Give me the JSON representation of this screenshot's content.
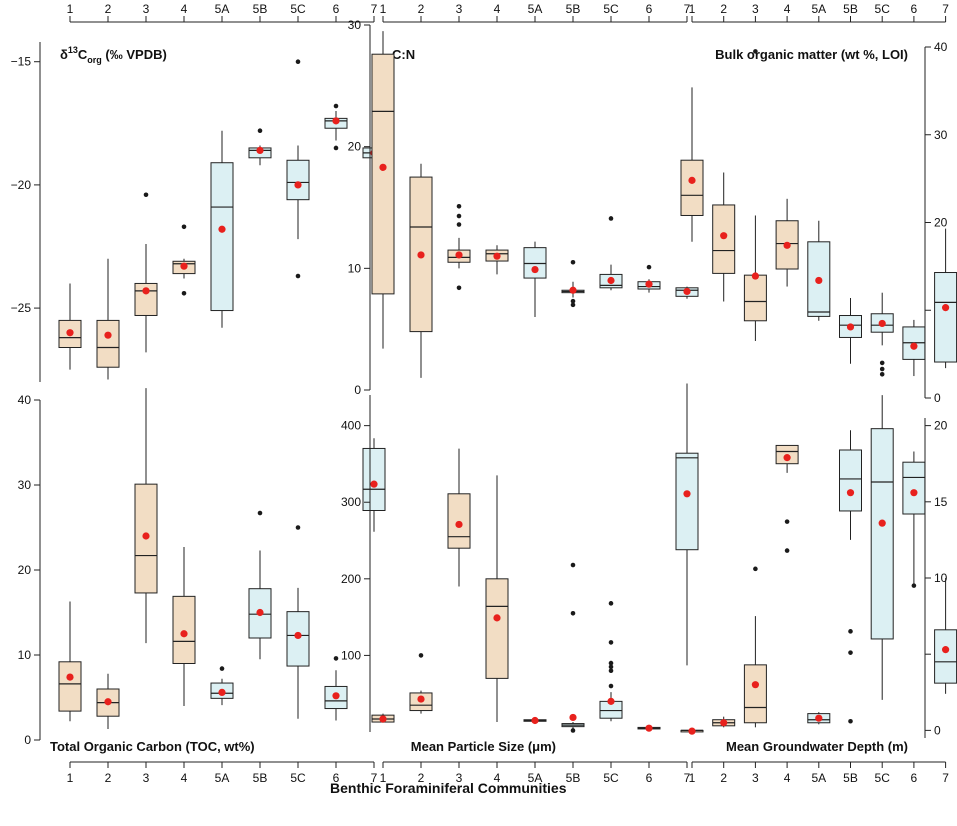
{
  "figure": {
    "xlabel": "Benthic Foraminiferal Communities",
    "groups": [
      "1",
      "2",
      "3",
      "4",
      "5A",
      "5B",
      "5C",
      "6",
      "7"
    ],
    "colors": {
      "box_a": "#f2ddc4",
      "box_b": "#dcf0f3",
      "mean_dot": "#e8211d",
      "outlier": "#1a1a1a",
      "axis": "#222222"
    }
  },
  "chart_data": [
    {
      "type": "box",
      "id": "d13c",
      "title": "δ13Corg (‰ VPDB)",
      "title_parts": {
        "main": "δ",
        "sup": "13",
        "c": "C",
        "sub": "org",
        "rest": " (‰ VPDB)"
      },
      "ylim": [
        -28,
        -14.2
      ],
      "yticks": [
        -15,
        -20,
        -25
      ],
      "ytick_labels": [
        "−15",
        "−20",
        "−25"
      ],
      "axis_side": "left",
      "group_axis": "top",
      "series": [
        {
          "group": "1",
          "q1": -26.6,
          "median": -26.2,
          "q3": -25.5,
          "whislo": -27.5,
          "whishi": -24.0,
          "mean": -26.0,
          "outliers": []
        },
        {
          "group": "2",
          "q1": -27.4,
          "median": -26.6,
          "q3": -25.5,
          "whislo": -27.9,
          "whishi": -23.0,
          "mean": -26.1,
          "outliers": []
        },
        {
          "group": "3",
          "q1": -25.3,
          "median": -24.3,
          "q3": -24.0,
          "whislo": -26.8,
          "whishi": -22.4,
          "mean": -24.3,
          "outliers": [
            -20.4
          ]
        },
        {
          "group": "4",
          "q1": -23.6,
          "median": -23.2,
          "q3": -23.1,
          "whislo": -23.8,
          "whishi": -23.0,
          "mean": -23.3,
          "outliers": [
            -21.7,
            -24.4
          ]
        },
        {
          "group": "5A",
          "q1": -25.1,
          "median": -20.9,
          "q3": -19.1,
          "whislo": -25.8,
          "whishi": -17.8,
          "mean": -21.8,
          "outliers": []
        },
        {
          "group": "5B",
          "q1": -18.9,
          "median": -18.6,
          "q3": -18.5,
          "whislo": -19.2,
          "whishi": -18.4,
          "mean": -18.6,
          "outliers": [
            -17.8
          ]
        },
        {
          "group": "5C",
          "q1": -20.6,
          "median": -19.9,
          "q3": -19.0,
          "whislo": -22.2,
          "whishi": -18.4,
          "mean": -20.0,
          "outliers": [
            -15.0,
            -23.7
          ]
        },
        {
          "group": "6",
          "q1": -17.7,
          "median": -17.4,
          "q3": -17.3,
          "whislo": -18.2,
          "whishi": -17.0,
          "mean": -17.4,
          "outliers": [
            -16.8,
            -18.5
          ]
        },
        {
          "group": "7",
          "q1": -18.9,
          "median": -18.7,
          "q3": -18.5,
          "whislo": -19.1,
          "whishi": -18.4,
          "mean": -18.7,
          "outliers": [
            -17.9,
            -18.0,
            -19.6
          ]
        }
      ]
    },
    {
      "type": "box",
      "id": "cn",
      "title": "C:N",
      "ylim": [
        0,
        30
      ],
      "yticks": [
        0,
        10,
        20,
        30
      ],
      "ytick_labels": [
        "0",
        "10",
        "20",
        "30"
      ],
      "axis_side": "left",
      "group_axis": "top",
      "series": [
        {
          "group": "1",
          "q1": 7.9,
          "median": 22.9,
          "q3": 27.6,
          "whislo": 3.4,
          "whishi": 29.5,
          "mean": 18.3,
          "outliers": []
        },
        {
          "group": "2",
          "q1": 4.8,
          "median": 13.4,
          "q3": 17.5,
          "whislo": 1.0,
          "whishi": 18.6,
          "mean": 11.1,
          "outliers": []
        },
        {
          "group": "3",
          "q1": 10.5,
          "median": 10.9,
          "q3": 11.5,
          "whislo": 10.0,
          "whishi": 12.5,
          "mean": 11.1,
          "outliers": [
            15.1,
            14.3,
            13.6,
            8.4
          ]
        },
        {
          "group": "4",
          "q1": 10.6,
          "median": 11.2,
          "q3": 11.5,
          "whislo": 9.5,
          "whishi": 11.9,
          "mean": 11.0,
          "outliers": []
        },
        {
          "group": "5A",
          "q1": 9.2,
          "median": 10.4,
          "q3": 11.7,
          "whislo": 6.0,
          "whishi": 12.2,
          "mean": 9.9,
          "outliers": []
        },
        {
          "group": "5B",
          "q1": 8.0,
          "median": 8.1,
          "q3": 8.2,
          "whislo": 7.6,
          "whishi": 8.9,
          "mean": 8.2,
          "outliers": [
            10.5,
            7.3,
            7.0
          ]
        },
        {
          "group": "5C",
          "q1": 8.4,
          "median": 8.6,
          "q3": 9.5,
          "whislo": 8.2,
          "whishi": 10.3,
          "mean": 9.0,
          "outliers": [
            14.1
          ]
        },
        {
          "group": "6",
          "q1": 8.3,
          "median": 8.5,
          "q3": 8.9,
          "whislo": 8.0,
          "whishi": 9.1,
          "mean": 8.7,
          "outliers": [
            10.1
          ]
        },
        {
          "group": "7",
          "q1": 7.7,
          "median": 8.2,
          "q3": 8.4,
          "whislo": 7.5,
          "whishi": 8.5,
          "mean": 8.1,
          "outliers": []
        }
      ]
    },
    {
      "type": "box",
      "id": "bulk_om",
      "title": "Bulk organic matter (wt %, LOI)",
      "ylim": [
        0,
        40
      ],
      "yticks": [
        0,
        10,
        20,
        30,
        40
      ],
      "ytick_labels": [
        "0",
        "10",
        "20",
        "30",
        "40"
      ],
      "axis_side": "right",
      "group_axis": "top",
      "series": [
        {
          "group": "1",
          "q1": 20.8,
          "median": 23.1,
          "q3": 27.1,
          "whislo": 17.8,
          "whishi": 35.4,
          "mean": 24.8,
          "outliers": []
        },
        {
          "group": "2",
          "q1": 14.2,
          "median": 16.8,
          "q3": 22.0,
          "whislo": 11.0,
          "whishi": 25.7,
          "mean": 18.5,
          "outliers": []
        },
        {
          "group": "3",
          "q1": 8.8,
          "median": 11.0,
          "q3": 14.0,
          "whislo": 6.5,
          "whishi": 20.8,
          "mean": 13.9,
          "outliers": [
            39.5
          ]
        },
        {
          "group": "4",
          "q1": 14.7,
          "median": 17.6,
          "q3": 20.2,
          "whislo": 12.7,
          "whishi": 22.7,
          "mean": 17.4,
          "outliers": []
        },
        {
          "group": "5A",
          "q1": 9.3,
          "median": 9.8,
          "q3": 17.8,
          "whislo": 8.8,
          "whishi": 20.2,
          "mean": 13.4,
          "outliers": []
        },
        {
          "group": "5B",
          "q1": 6.9,
          "median": 8.3,
          "q3": 9.4,
          "whislo": 3.9,
          "whishi": 11.4,
          "mean": 8.1,
          "outliers": []
        },
        {
          "group": "5C",
          "q1": 7.5,
          "median": 8.3,
          "q3": 9.6,
          "whislo": 6.0,
          "whishi": 12.0,
          "mean": 8.5,
          "outliers": [
            4.0,
            3.3,
            2.7
          ]
        },
        {
          "group": "6",
          "q1": 4.4,
          "median": 6.3,
          "q3": 8.1,
          "whislo": 2.5,
          "whishi": 8.9,
          "mean": 5.9,
          "outliers": []
        },
        {
          "group": "7",
          "q1": 4.1,
          "median": 10.9,
          "q3": 14.3,
          "whislo": 3.4,
          "whishi": 19.3,
          "mean": 10.3,
          "outliers": []
        }
      ]
    },
    {
      "type": "box",
      "id": "toc",
      "title": "Total Organic Carbon (TOC, wt%)",
      "ylim": [
        0,
        40
      ],
      "yticks": [
        0,
        10,
        20,
        30,
        40
      ],
      "ytick_labels": [
        "0",
        "10",
        "20",
        "30",
        "40"
      ],
      "axis_side": "left",
      "group_axis": "bottom",
      "series": [
        {
          "group": "1",
          "q1": 3.4,
          "median": 6.6,
          "q3": 9.2,
          "whislo": 2.2,
          "whishi": 16.3,
          "mean": 7.4,
          "outliers": []
        },
        {
          "group": "2",
          "q1": 2.8,
          "median": 4.4,
          "q3": 6.0,
          "whislo": 1.3,
          "whishi": 7.8,
          "mean": 4.5,
          "outliers": []
        },
        {
          "group": "3",
          "q1": 17.3,
          "median": 21.7,
          "q3": 30.1,
          "whislo": 11.4,
          "whishi": 41.4,
          "mean": 24.0,
          "outliers": []
        },
        {
          "group": "4",
          "q1": 9.0,
          "median": 11.6,
          "q3": 16.9,
          "whislo": 4.0,
          "whishi": 22.7,
          "mean": 12.5,
          "outliers": []
        },
        {
          "group": "5A",
          "q1": 4.9,
          "median": 5.5,
          "q3": 6.7,
          "whislo": 4.1,
          "whishi": 7.2,
          "mean": 5.6,
          "outliers": [
            8.4
          ]
        },
        {
          "group": "5B",
          "q1": 12.0,
          "median": 14.8,
          "q3": 17.8,
          "whislo": 9.5,
          "whishi": 22.3,
          "mean": 15.0,
          "outliers": [
            26.7
          ]
        },
        {
          "group": "5C",
          "q1": 8.7,
          "median": 12.3,
          "q3": 15.1,
          "whislo": 2.5,
          "whishi": 17.9,
          "mean": 12.3,
          "outliers": [
            25.0
          ]
        },
        {
          "group": "6",
          "q1": 3.7,
          "median": 4.6,
          "q3": 6.3,
          "whislo": 2.3,
          "whishi": 8.2,
          "mean": 5.2,
          "outliers": [
            9.6
          ]
        },
        {
          "group": "7",
          "q1": 27.0,
          "median": 29.5,
          "q3": 34.3,
          "whislo": 24.5,
          "whishi": 35.5,
          "mean": 30.1,
          "outliers": []
        }
      ]
    },
    {
      "type": "box",
      "id": "particle",
      "title": "Mean Particle Size (μm)",
      "ylim": [
        0,
        440
      ],
      "yticks": [
        100,
        200,
        300,
        400
      ],
      "ytick_labels": [
        "100",
        "200",
        "300",
        "400"
      ],
      "axis_side": "left",
      "group_axis": "bottom",
      "series": [
        {
          "group": "1",
          "q1": 13,
          "median": 17,
          "q3": 22,
          "whislo": 12,
          "whishi": 24,
          "mean": 17,
          "outliers": []
        },
        {
          "group": "2",
          "q1": 28,
          "median": 35,
          "q3": 51,
          "whislo": 24,
          "whishi": 54,
          "mean": 43,
          "outliers": [
            100
          ]
        },
        {
          "group": "3",
          "q1": 240,
          "median": 255,
          "q3": 311,
          "whislo": 190,
          "whishi": 370,
          "mean": 271,
          "outliers": []
        },
        {
          "group": "4",
          "q1": 70,
          "median": 164,
          "q3": 200,
          "whislo": 13,
          "whishi": 335,
          "mean": 149,
          "outliers": []
        },
        {
          "group": "5A",
          "q1": 14,
          "median": 15,
          "q3": 16,
          "whislo": 14,
          "whishi": 17,
          "mean": 15,
          "outliers": []
        },
        {
          "group": "5B",
          "q1": 7,
          "median": 9,
          "q3": 11,
          "whislo": 4,
          "whishi": 13,
          "mean": 19,
          "outliers": [
            218,
            155,
            2
          ]
        },
        {
          "group": "5C",
          "q1": 18,
          "median": 28,
          "q3": 40,
          "whislo": 14,
          "whishi": 52,
          "mean": 40,
          "outliers": [
            168,
            117,
            90,
            85,
            80,
            60
          ]
        },
        {
          "group": "6",
          "q1": 4,
          "median": 5,
          "q3": 6,
          "whislo": 3,
          "whishi": 7,
          "mean": 5,
          "outliers": []
        },
        {
          "group": "7",
          "q1": 238,
          "median": 358,
          "q3": 364,
          "whislo": 87,
          "whishi": 455,
          "mean": 311,
          "outliers": []
        }
      ]
    },
    {
      "type": "box",
      "id": "groundwater",
      "title": "Mean Groundwater Depth (m)",
      "ylim": [
        -0.5,
        20.5
      ],
      "yticks": [
        0,
        5,
        10,
        15,
        20
      ],
      "ytick_labels": [
        "0",
        "5",
        "10",
        "15",
        "20"
      ],
      "axis_side": "right",
      "group_axis": "bottom",
      "series": [
        {
          "group": "1",
          "q1": -0.1,
          "median": 0.0,
          "q3": 0.0,
          "whislo": -0.1,
          "whishi": 0.0,
          "mean": -0.05,
          "outliers": []
        },
        {
          "group": "2",
          "q1": 0.3,
          "median": 0.5,
          "q3": 0.7,
          "whislo": 0.2,
          "whishi": 0.9,
          "mean": 0.5,
          "outliers": []
        },
        {
          "group": "3",
          "q1": 0.5,
          "median": 1.5,
          "q3": 4.3,
          "whislo": 0.2,
          "whishi": 7.5,
          "mean": 3.0,
          "outliers": [
            10.6
          ]
        },
        {
          "group": "4",
          "q1": 17.5,
          "median": 18.3,
          "q3": 18.7,
          "whislo": 16.9,
          "whishi": 18.7,
          "mean": 17.9,
          "outliers": [
            13.7,
            11.8
          ]
        },
        {
          "group": "5A",
          "q1": 0.5,
          "median": 0.7,
          "q3": 1.1,
          "whislo": 0.4,
          "whishi": 1.2,
          "mean": 0.8,
          "outliers": []
        },
        {
          "group": "5B",
          "q1": 14.4,
          "median": 16.5,
          "q3": 18.4,
          "whislo": 12.5,
          "whishi": 19.7,
          "mean": 15.6,
          "outliers": [
            6.5,
            5.1,
            0.6
          ]
        },
        {
          "group": "5C",
          "q1": 6.0,
          "median": 16.3,
          "q3": 19.8,
          "whislo": 2.0,
          "whishi": 22.0,
          "mean": 13.6,
          "outliers": []
        },
        {
          "group": "6",
          "q1": 14.2,
          "median": 16.6,
          "q3": 17.6,
          "whislo": 9.5,
          "whishi": 18.3,
          "mean": 15.6,
          "outliers": [
            9.5
          ]
        },
        {
          "group": "7",
          "q1": 3.1,
          "median": 4.5,
          "q3": 6.6,
          "whislo": 2.4,
          "whishi": 10.0,
          "mean": 5.3,
          "outliers": []
        }
      ]
    }
  ]
}
